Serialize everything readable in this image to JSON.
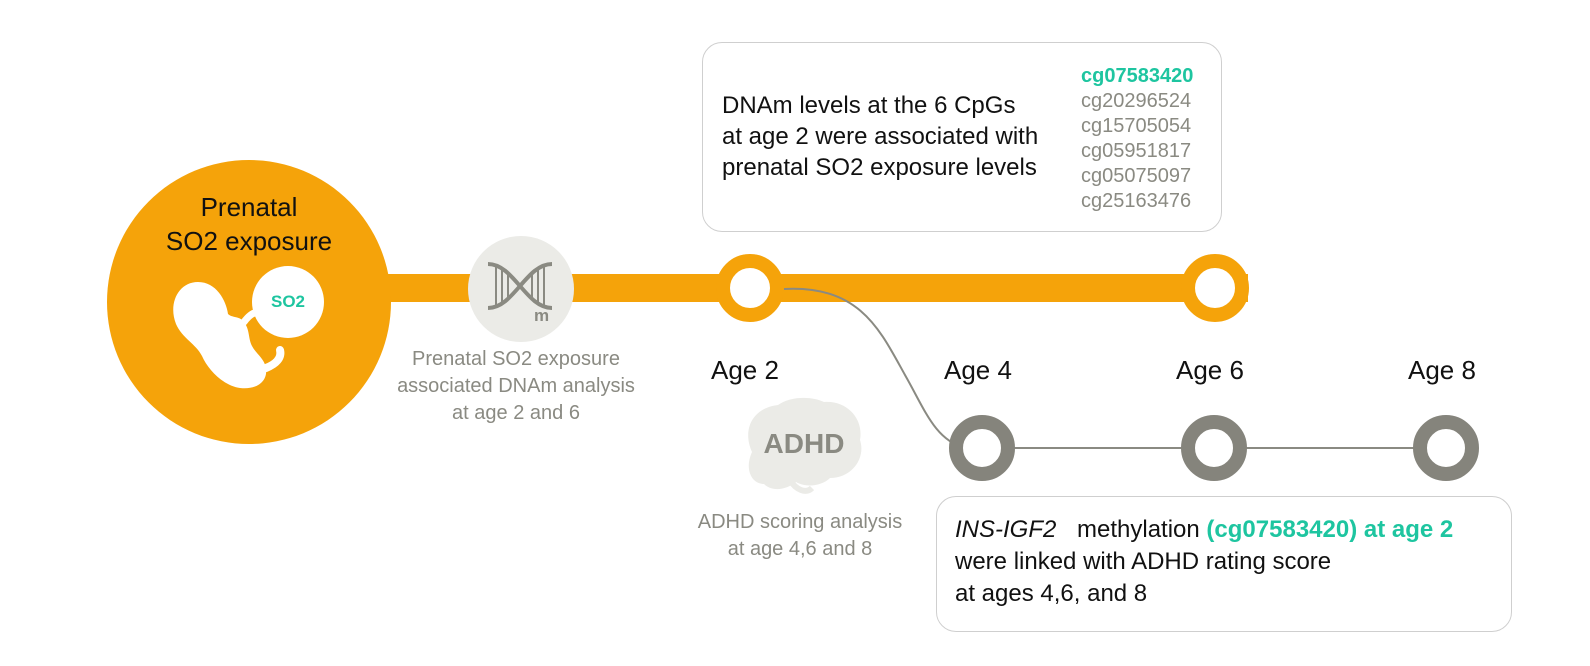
{
  "main_node": {
    "title_line1": "Prenatal",
    "title_line2": "SO2 exposure",
    "badge": "SO2",
    "icon": "fetus-icon"
  },
  "dna_node": {
    "icon": "dna-methylation-icon",
    "badge": "m",
    "caption_line1": "Prenatal SO2 exposure",
    "caption_line2": "associated DNAm analysis",
    "caption_line3": "at age 2 and 6"
  },
  "timeline_top": {
    "color": "#f5a30a",
    "age_labels": [
      "Age 2",
      "Age 4",
      "Age 6",
      "Age 8"
    ]
  },
  "adhd_node": {
    "icon": "brain-icon",
    "label": "ADHD",
    "caption_line1": "ADHD scoring analysis",
    "caption_line2": "at age 4,6 and 8"
  },
  "top_box": {
    "line1": "DNAm levels at the 6 CpGs",
    "line2": "at age 2 were associated with",
    "line3": "prenatal SO2 exposure levels",
    "cpgs": [
      "cg07583420",
      "cg20296524",
      "cg15705054",
      "cg05951817",
      "cg05075097",
      "cg25163476"
    ],
    "highlight_index": 0
  },
  "bottom_box": {
    "gene": "INS-IGF2",
    "line1_mid": "methylation",
    "line1_highlight": "(cg07583420) at age 2",
    "line2": "were linked with ADHD rating score",
    "line3": "at ages 4,6, and 8"
  },
  "colors": {
    "orange": "#f5a30a",
    "grey": "#8a8a82",
    "dark_grey_node": "#85847c",
    "teal": "#1ec5a0"
  }
}
